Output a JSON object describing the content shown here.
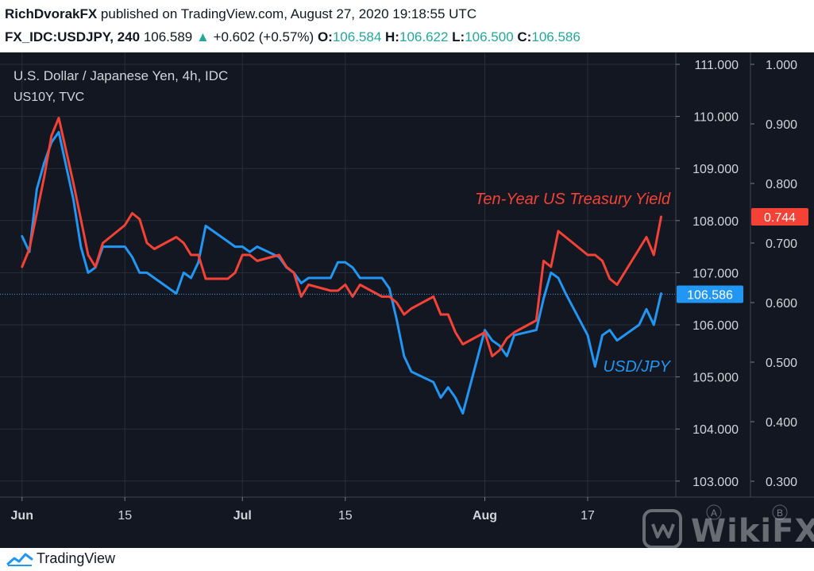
{
  "header": {
    "user": "RichDvorakFX",
    "published": " published on TradingView.com, August 27, 2020 19:18:55 UTC",
    "symbol": "FX_IDC:USDJPY, 240",
    "last": "106.589",
    "up_arrow": "▲",
    "change": "+0.602 (+0.57%)",
    "o_label": "O:",
    "o_value": "106.584",
    "h_label": "H:",
    "h_value": "106.622",
    "l_label": "L:",
    "l_value": "106.500",
    "c_label": "C:",
    "c_value": "106.586"
  },
  "legend": {
    "title": "U.S. Dollar / Japanese Yen, 4h, IDC",
    "sub": "US10Y, TVC"
  },
  "annotations": {
    "yield_label": "Ten-Year US Treasury Yield",
    "usdjpy_label": "USD/JPY"
  },
  "price_tags": {
    "usdjpy": "106.586",
    "yield": "0.744"
  },
  "scale_buttons": {
    "a": "A",
    "b": "B"
  },
  "footer": {
    "brand": "TradingView"
  },
  "watermark": {
    "text": "WikiFX"
  },
  "colors": {
    "background": "#131722",
    "grid": "#2a2e39",
    "usdjpy": "#2196f3",
    "yield": "#f44336",
    "axis_text": "#d1d4dc",
    "up": "#26a69a"
  },
  "chart_data": {
    "type": "line",
    "x_ticks": [
      "Jun",
      "15",
      "Jul",
      "15",
      "Aug",
      "17"
    ],
    "y_left": {
      "ticks": [
        "111.000",
        "110.000",
        "109.000",
        "108.000",
        "107.000",
        "106.000",
        "105.000",
        "104.000",
        "103.000"
      ],
      "range": [
        103,
        111
      ]
    },
    "y_right": {
      "ticks": [
        "1.000",
        "0.900",
        "0.800",
        "0.700",
        "0.600",
        "0.500",
        "0.400",
        "0.300"
      ],
      "range": [
        0.3,
        1.0
      ]
    },
    "series": [
      {
        "name": "USD/JPY",
        "axis": "left",
        "x": [
          "2020-06-01",
          "2020-06-02",
          "2020-06-03",
          "2020-06-04",
          "2020-06-05",
          "2020-06-06",
          "2020-06-08",
          "2020-06-09",
          "2020-06-10",
          "2020-06-11",
          "2020-06-12",
          "2020-06-15",
          "2020-06-16",
          "2020-06-17",
          "2020-06-18",
          "2020-06-19",
          "2020-06-22",
          "2020-06-23",
          "2020-06-24",
          "2020-06-25",
          "2020-06-26",
          "2020-06-29",
          "2020-06-30",
          "2020-07-01",
          "2020-07-02",
          "2020-07-03",
          "2020-07-06",
          "2020-07-07",
          "2020-07-08",
          "2020-07-09",
          "2020-07-10",
          "2020-07-13",
          "2020-07-14",
          "2020-07-15",
          "2020-07-16",
          "2020-07-17",
          "2020-07-20",
          "2020-07-21",
          "2020-07-22",
          "2020-07-23",
          "2020-07-24",
          "2020-07-27",
          "2020-07-28",
          "2020-07-29",
          "2020-07-30",
          "2020-07-31",
          "2020-08-03",
          "2020-08-04",
          "2020-08-05",
          "2020-08-06",
          "2020-08-07",
          "2020-08-10",
          "2020-08-11",
          "2020-08-12",
          "2020-08-13",
          "2020-08-14",
          "2020-08-17",
          "2020-08-18",
          "2020-08-19",
          "2020-08-20",
          "2020-08-21",
          "2020-08-24",
          "2020-08-25",
          "2020-08-26",
          "2020-08-27"
        ],
        "values": [
          107.7,
          107.4,
          108.6,
          109.1,
          109.5,
          109.7,
          108.4,
          107.5,
          107.0,
          107.1,
          107.5,
          107.5,
          107.3,
          107.0,
          107.0,
          106.9,
          106.6,
          107.0,
          106.9,
          107.2,
          107.9,
          107.6,
          107.5,
          107.5,
          107.4,
          107.5,
          107.3,
          107.1,
          107.0,
          106.8,
          106.9,
          106.9,
          107.2,
          107.2,
          107.1,
          106.9,
          106.9,
          106.7,
          106.1,
          105.4,
          105.1,
          104.9,
          104.6,
          104.8,
          104.6,
          104.3,
          105.9,
          105.7,
          105.6,
          105.4,
          105.8,
          105.9,
          106.5,
          107.0,
          106.9,
          106.6,
          105.8,
          105.2,
          105.8,
          105.9,
          105.7,
          106.0,
          106.3,
          106.0,
          106.6
        ]
      },
      {
        "name": "Ten-Year US Treasury Yield",
        "axis": "right",
        "x": [
          "2020-06-01",
          "2020-06-02",
          "2020-06-03",
          "2020-06-04",
          "2020-06-05",
          "2020-06-06",
          "2020-06-08",
          "2020-06-09",
          "2020-06-10",
          "2020-06-11",
          "2020-06-12",
          "2020-06-15",
          "2020-06-16",
          "2020-06-17",
          "2020-06-18",
          "2020-06-19",
          "2020-06-22",
          "2020-06-23",
          "2020-06-24",
          "2020-06-25",
          "2020-06-26",
          "2020-06-29",
          "2020-06-30",
          "2020-07-01",
          "2020-07-02",
          "2020-07-03",
          "2020-07-06",
          "2020-07-07",
          "2020-07-08",
          "2020-07-09",
          "2020-07-10",
          "2020-07-13",
          "2020-07-14",
          "2020-07-15",
          "2020-07-16",
          "2020-07-17",
          "2020-07-20",
          "2020-07-21",
          "2020-07-22",
          "2020-07-23",
          "2020-07-24",
          "2020-07-27",
          "2020-07-28",
          "2020-07-29",
          "2020-07-30",
          "2020-07-31",
          "2020-08-03",
          "2020-08-04",
          "2020-08-05",
          "2020-08-06",
          "2020-08-07",
          "2020-08-10",
          "2020-08-11",
          "2020-08-12",
          "2020-08-13",
          "2020-08-14",
          "2020-08-17",
          "2020-08-18",
          "2020-08-19",
          "2020-08-20",
          "2020-08-21",
          "2020-08-24",
          "2020-08-25",
          "2020-08-26",
          "2020-08-27"
        ],
        "values": [
          0.66,
          0.69,
          0.75,
          0.81,
          0.88,
          0.91,
          0.8,
          0.74,
          0.68,
          0.66,
          0.7,
          0.73,
          0.75,
          0.74,
          0.7,
          0.69,
          0.71,
          0.7,
          0.68,
          0.68,
          0.64,
          0.64,
          0.65,
          0.68,
          0.68,
          0.67,
          0.68,
          0.66,
          0.65,
          0.61,
          0.63,
          0.62,
          0.62,
          0.63,
          0.61,
          0.63,
          0.61,
          0.61,
          0.6,
          0.58,
          0.59,
          0.61,
          0.58,
          0.58,
          0.55,
          0.53,
          0.55,
          0.51,
          0.52,
          0.54,
          0.55,
          0.57,
          0.67,
          0.66,
          0.72,
          0.71,
          0.68,
          0.68,
          0.67,
          0.64,
          0.63,
          0.69,
          0.71,
          0.68,
          0.744
        ]
      }
    ],
    "last_values": {
      "usdjpy": 106.586,
      "yield": 0.744
    },
    "grid": true
  }
}
